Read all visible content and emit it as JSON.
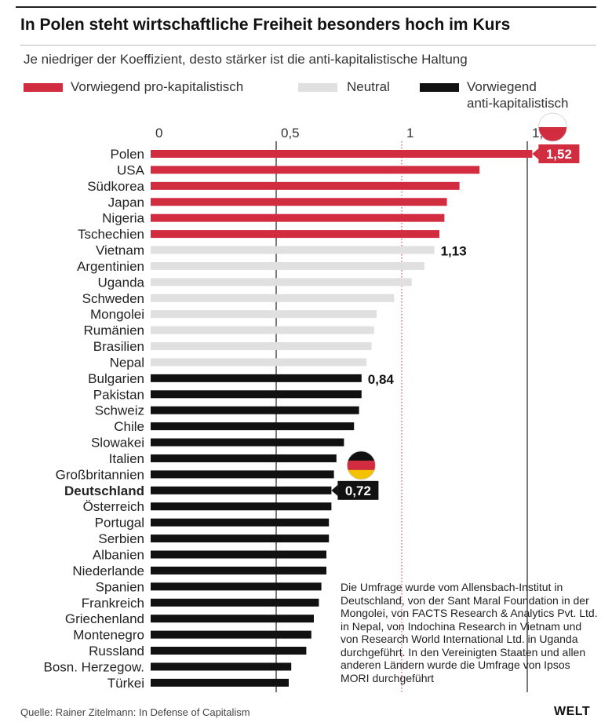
{
  "header": {
    "title": "In Polen steht wirtschaftliche Freiheit besonders hoch im Kurs",
    "subtitle": "Je niedriger der Koeffizient, desto stärker ist die anti-kapitalistische Haltung"
  },
  "legend": {
    "items": [
      {
        "label": "Vorwiegend pro-kapitalistisch",
        "color": "#d12c3f"
      },
      {
        "label": "Neutral",
        "color": "#e0e0e0"
      },
      {
        "label_line1": "Vorwiegend",
        "label_line2": "anti-kapitalistisch",
        "color": "#111111"
      }
    ]
  },
  "chart_data": {
    "type": "bar",
    "orientation": "horizontal",
    "xlim": [
      0,
      1.5
    ],
    "tick_values": [
      0,
      0.5,
      1,
      1.5
    ],
    "tick_labels": [
      "0",
      "0,5",
      "1",
      "1,5"
    ],
    "reference_line": 1,
    "categories": [
      "Polen",
      "USA",
      "Südkorea",
      "Japan",
      "Nigeria",
      "Tschechien",
      "Vietnam",
      "Argentinien",
      "Uganda",
      "Schweden",
      "Mongolei",
      "Rumänien",
      "Brasilien",
      "Nepal",
      "Bulgarien",
      "Pakistan",
      "Schweiz",
      "Chile",
      "Slowakei",
      "Italien",
      "Großbritannien",
      "Deutschland",
      "Österreich",
      "Portugal",
      "Serbien",
      "Albanien",
      "Niederlande",
      "Spanien",
      "Frankreich",
      "Griechenland",
      "Montenegro",
      "Russland",
      "Bosn. Herzegow.",
      "Türkei"
    ],
    "values": [
      1.52,
      1.31,
      1.23,
      1.18,
      1.17,
      1.15,
      1.13,
      1.09,
      1.04,
      0.97,
      0.9,
      0.89,
      0.88,
      0.86,
      0.84,
      0.84,
      0.83,
      0.81,
      0.77,
      0.74,
      0.73,
      0.72,
      0.72,
      0.71,
      0.71,
      0.7,
      0.7,
      0.68,
      0.67,
      0.65,
      0.64,
      0.62,
      0.56,
      0.55
    ],
    "groups": [
      "pro",
      "pro",
      "pro",
      "pro",
      "pro",
      "pro",
      "neutral",
      "neutral",
      "neutral",
      "neutral",
      "neutral",
      "neutral",
      "neutral",
      "neutral",
      "anti",
      "anti",
      "anti",
      "anti",
      "anti",
      "anti",
      "anti",
      "anti",
      "anti",
      "anti",
      "anti",
      "anti",
      "anti",
      "anti",
      "anti",
      "anti",
      "anti",
      "anti",
      "anti",
      "anti"
    ],
    "group_colors": {
      "pro": "#d12c3f",
      "neutral": "#e0e0e0",
      "anti": "#111111"
    },
    "highlight": "Deutschland",
    "annotations": [
      {
        "category": "Polen",
        "label": "1,52",
        "style": "badge-red",
        "flag": "poland"
      },
      {
        "category": "Vietnam",
        "label": "1,13",
        "style": "plain"
      },
      {
        "category": "Bulgarien",
        "label": "0,84",
        "style": "plain"
      },
      {
        "category": "Deutschland",
        "label": "0,72",
        "style": "badge-black",
        "flag": "germany"
      }
    ],
    "flag_colors": {
      "poland": [
        "#ffffff",
        "#d12c3f"
      ],
      "germany": [
        "#111111",
        "#d12c3f",
        "#f2c100"
      ]
    }
  },
  "footnote": "Die Umfrage wurde vom Allensbach-Institut in Deutschland, von der Sant Maral Foundation in der Mongolei, von FACTS Research & Analytics Pvt. Ltd. in Nepal, von Indochina Research in Vietnam und von Research World International Ltd. in Uganda durchgeführt. In den Vereinigten Staaten und allen anderen Ländern wurde die Umfrage von Ipsos MORI durchgeführt",
  "source": "Quelle: Rainer Zitelmann: In Defense of Capitalism",
  "logo": "WELT"
}
